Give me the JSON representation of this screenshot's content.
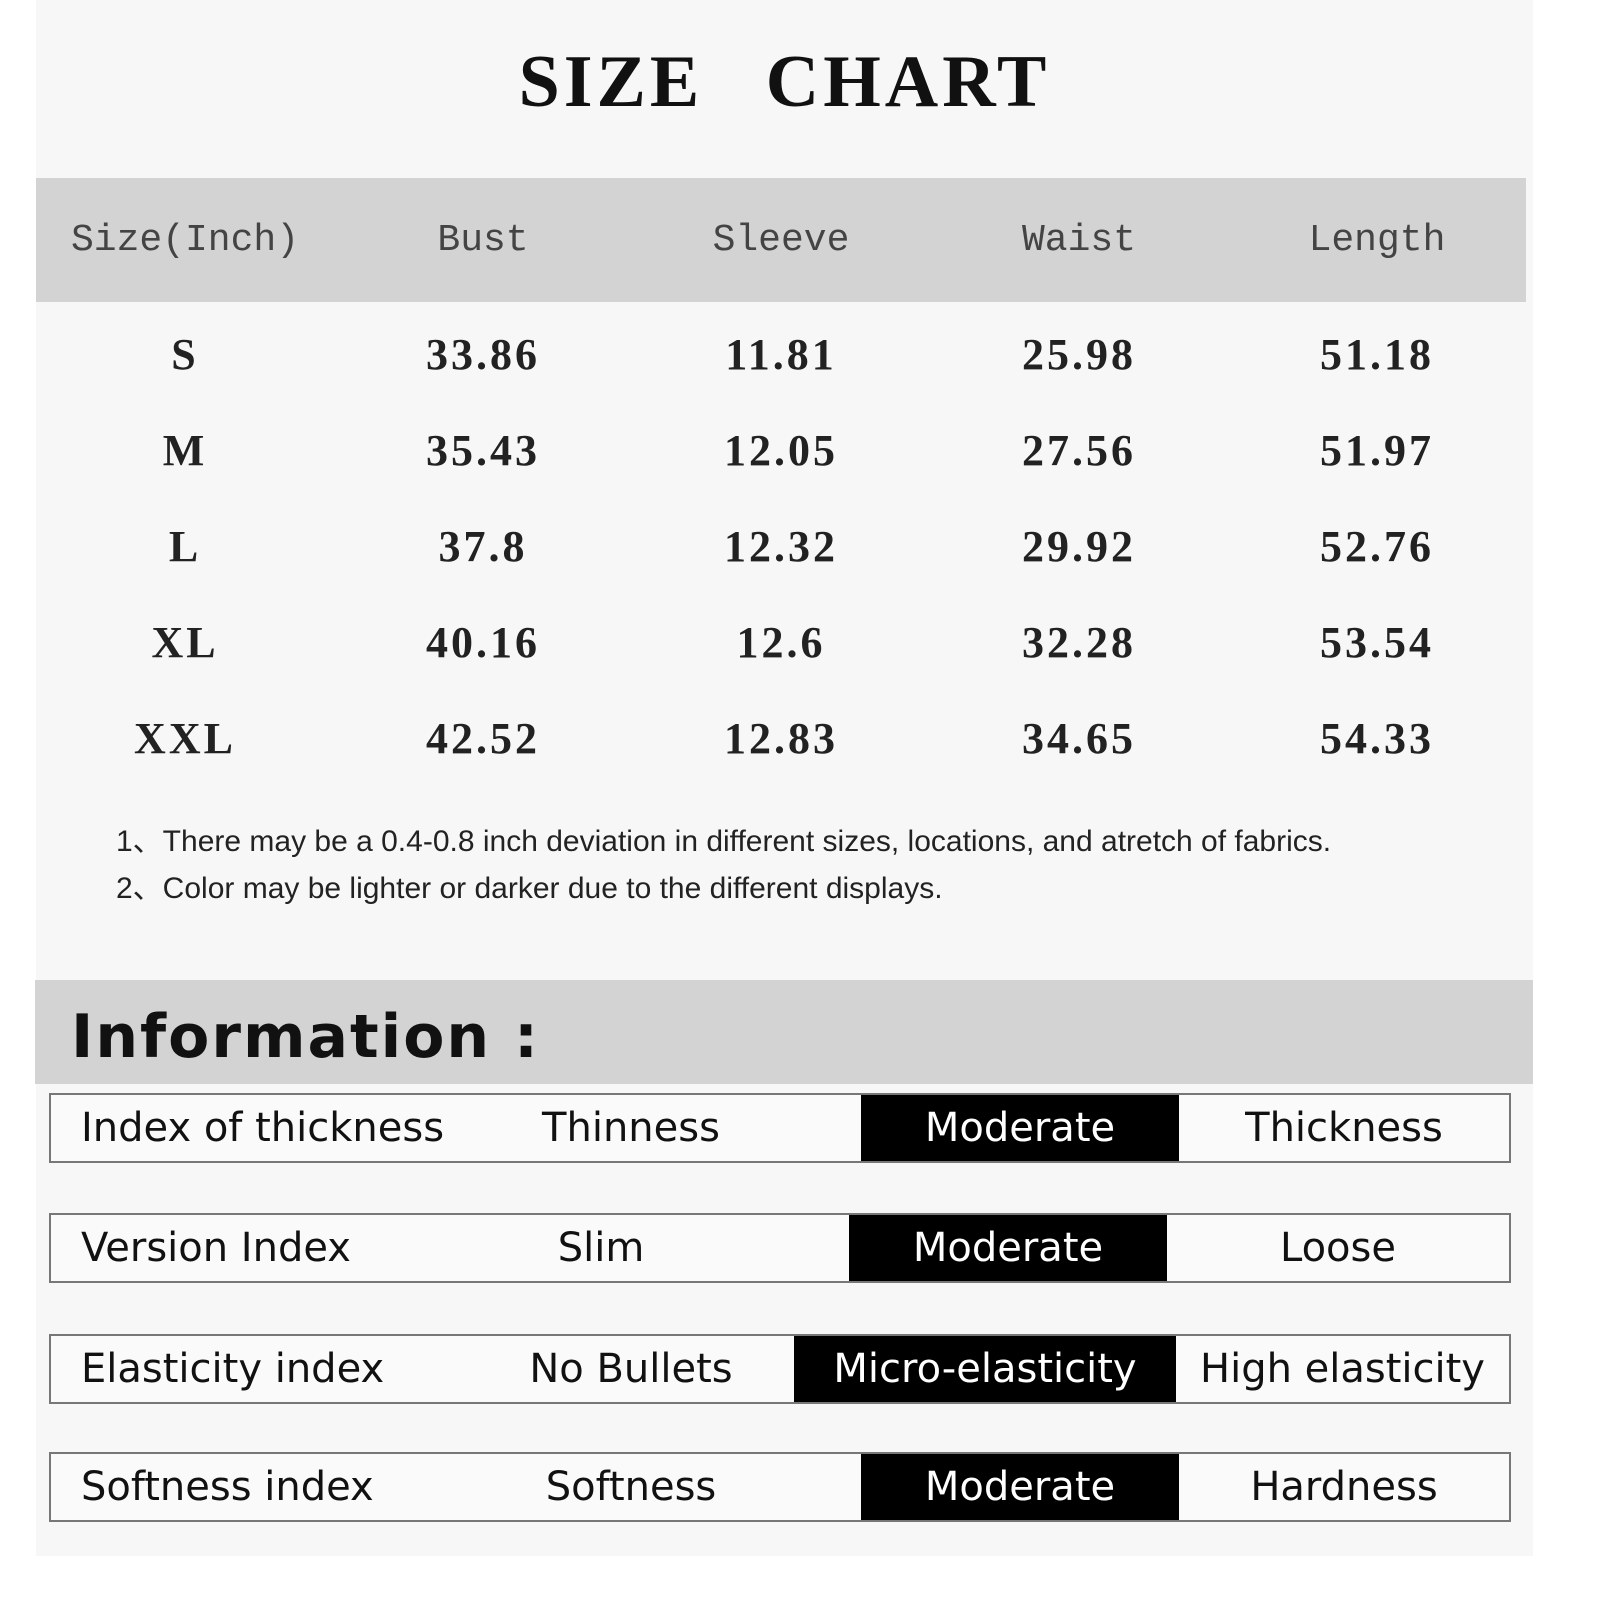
{
  "title": "SIZE CHART",
  "table": {
    "headers": [
      "Size(Inch)",
      "Bust",
      "Sleeve",
      "Waist",
      "Length"
    ],
    "rows": [
      [
        "S",
        "33.86",
        "11.81",
        "25.98",
        "51.18"
      ],
      [
        "M",
        "35.43",
        "12.05",
        "27.56",
        "51.97"
      ],
      [
        "L",
        "37.8",
        "12.32",
        "29.92",
        "52.76"
      ],
      [
        "XL",
        "40.16",
        "12.6",
        "32.28",
        "53.54"
      ],
      [
        "XXL",
        "42.52",
        "12.83",
        "34.65",
        "54.33"
      ]
    ]
  },
  "notes": [
    "1、There may be a 0.4-0.8 inch deviation in different sizes, locations, and atretch of fabrics.",
    "2、Color may be lighter or darker due to the different displays."
  ],
  "information": {
    "heading": "Information :",
    "rows": [
      {
        "label": "Index of thickness",
        "options": [
          "Thinness",
          "Moderate",
          "Thickness"
        ],
        "selected": "Moderate"
      },
      {
        "label": "Version Index",
        "options": [
          "Slim",
          "Moderate",
          "Loose"
        ],
        "selected": "Moderate"
      },
      {
        "label": "Elasticity index",
        "options": [
          "No Bullets",
          "Micro-elasticity",
          "High elasticity"
        ],
        "selected": "Micro-elasticity"
      },
      {
        "label": "Softness index",
        "options": [
          "Softness",
          "Moderate",
          "Hardness"
        ],
        "selected": "Moderate"
      }
    ]
  },
  "colors": {
    "header_bg": "#d3d3d3",
    "selected_bg": "#000000",
    "panel_bg": "#f7f7f7"
  }
}
